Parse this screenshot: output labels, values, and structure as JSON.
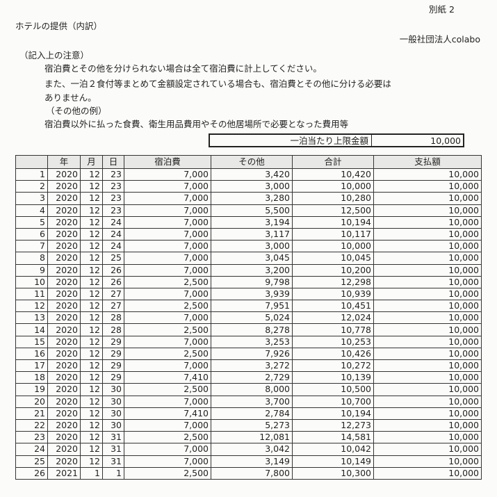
{
  "header": {
    "attachment": "別紙 2",
    "title": "ホテルの提供（内訳）",
    "organization": "一般社団法人colabo"
  },
  "notes": {
    "heading": "（記入上の注意）",
    "line1": "宿泊費とその他を分けられない場合は全て宿泊費に計上してください。",
    "line2": "また、一泊２食付等まとめて金額設定されている場合も、宿泊費とその他に分ける必要は",
    "line3": "ありません。",
    "other_heading": "（その他の例）",
    "other_text": "宿泊費以外に払った食費、衛生用品費用やその他居場所で必要となった費用等"
  },
  "limit": {
    "label": "一泊当たり上限金額",
    "value": "10,000"
  },
  "table": {
    "columns": [
      "",
      "年",
      "月",
      "日",
      "宿泊費",
      "その他",
      "合計",
      "支払額"
    ],
    "rows": [
      [
        "1",
        "2020",
        "12",
        "23",
        "7,000",
        "3,420",
        "10,420",
        "10,000"
      ],
      [
        "2",
        "2020",
        "12",
        "23",
        "7,000",
        "3,000",
        "10,000",
        "10,000"
      ],
      [
        "3",
        "2020",
        "12",
        "23",
        "7,000",
        "3,280",
        "10,280",
        "10,000"
      ],
      [
        "4",
        "2020",
        "12",
        "23",
        "7,000",
        "5,500",
        "12,500",
        "10,000"
      ],
      [
        "5",
        "2020",
        "12",
        "24",
        "7,000",
        "3,194",
        "10,194",
        "10,000"
      ],
      [
        "6",
        "2020",
        "12",
        "24",
        "7,000",
        "3,117",
        "10,117",
        "10,000"
      ],
      [
        "7",
        "2020",
        "12",
        "24",
        "7,000",
        "3,000",
        "10,000",
        "10,000"
      ],
      [
        "8",
        "2020",
        "12",
        "25",
        "7,000",
        "3,045",
        "10,045",
        "10,000"
      ],
      [
        "9",
        "2020",
        "12",
        "26",
        "7,000",
        "3,200",
        "10,200",
        "10,000"
      ],
      [
        "10",
        "2020",
        "12",
        "26",
        "2,500",
        "9,798",
        "12,298",
        "10,000"
      ],
      [
        "11",
        "2020",
        "12",
        "27",
        "7,000",
        "3,939",
        "10,939",
        "10,000"
      ],
      [
        "12",
        "2020",
        "12",
        "27",
        "2,500",
        "7,951",
        "10,451",
        "10,000"
      ],
      [
        "13",
        "2020",
        "12",
        "28",
        "7,000",
        "5,024",
        "12,024",
        "10,000"
      ],
      [
        "14",
        "2020",
        "12",
        "28",
        "2,500",
        "8,278",
        "10,778",
        "10,000"
      ],
      [
        "15",
        "2020",
        "12",
        "29",
        "7,000",
        "3,253",
        "10,253",
        "10,000"
      ],
      [
        "16",
        "2020",
        "12",
        "29",
        "2,500",
        "7,926",
        "10,426",
        "10,000"
      ],
      [
        "17",
        "2020",
        "12",
        "29",
        "7,000",
        "3,272",
        "10,272",
        "10,000"
      ],
      [
        "18",
        "2020",
        "12",
        "29",
        "7,410",
        "2,729",
        "10,139",
        "10,000"
      ],
      [
        "19",
        "2020",
        "12",
        "30",
        "2,500",
        "8,000",
        "10,500",
        "10,000"
      ],
      [
        "20",
        "2020",
        "12",
        "30",
        "7,000",
        "3,700",
        "10,700",
        "10,000"
      ],
      [
        "21",
        "2020",
        "12",
        "30",
        "7,410",
        "2,784",
        "10,194",
        "10,000"
      ],
      [
        "22",
        "2020",
        "12",
        "30",
        "7,000",
        "5,273",
        "12,273",
        "10,000"
      ],
      [
        "23",
        "2020",
        "12",
        "31",
        "2,500",
        "12,081",
        "14,581",
        "10,000"
      ],
      [
        "24",
        "2020",
        "12",
        "31",
        "7,000",
        "3,042",
        "10,042",
        "10,000"
      ],
      [
        "25",
        "2020",
        "12",
        "31",
        "7,000",
        "3,149",
        "10,149",
        "10,000"
      ],
      [
        "26",
        "2021",
        "1",
        "1",
        "2,500",
        "7,800",
        "10,300",
        "10,000"
      ]
    ]
  }
}
